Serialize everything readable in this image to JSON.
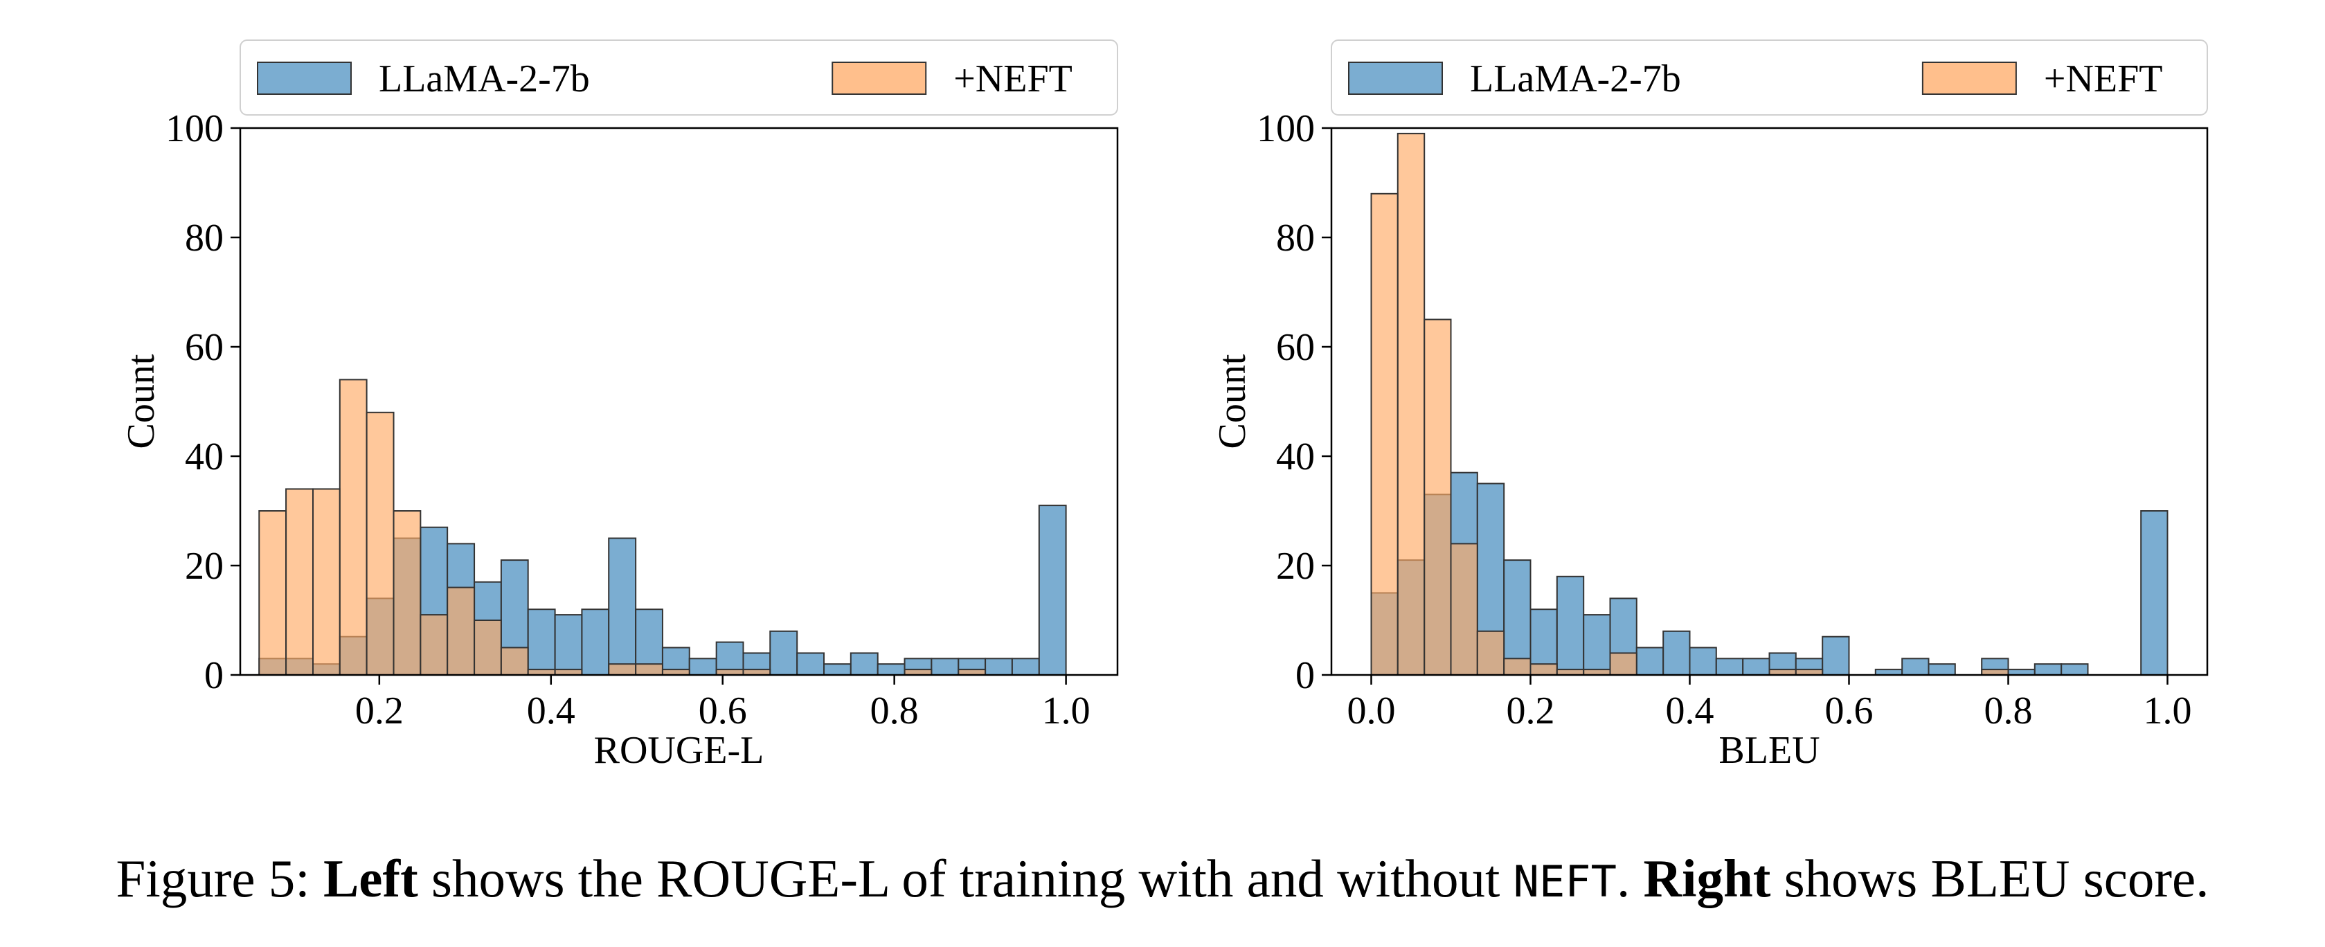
{
  "caption": {
    "prefix": "Figure 5: ",
    "left_bold": "Left",
    "left_text": " shows the ROUGE-L of training with and without ",
    "mono": "NEFT",
    "mid": ". ",
    "right_bold": "Right",
    "right_text": " shows BLEU score."
  },
  "colors": {
    "base": "#1f77b4",
    "neft": "#ff7f0e",
    "base_face": "#74a9cf",
    "neft_face": "#ffaa66"
  },
  "chart_data": [
    {
      "type": "bar",
      "subtype": "histogram",
      "xlabel": "ROUGE-L",
      "ylabel": "Count",
      "xlim": [
        0.038,
        1.06
      ],
      "ylim": [
        0,
        100
      ],
      "xticks": [
        0.2,
        0.4,
        0.6,
        0.8,
        1.0
      ],
      "xtick_labels": [
        "0.2",
        "0.4",
        "0.6",
        "0.8",
        "1.0"
      ],
      "yticks": [
        0,
        20,
        40,
        60,
        80,
        100
      ],
      "ytick_labels": [
        "0",
        "20",
        "40",
        "60",
        "80",
        "100"
      ],
      "bin_edges": [
        0.06,
        0.0913,
        0.1227,
        0.154,
        0.1853,
        0.2167,
        0.248,
        0.2793,
        0.3107,
        0.342,
        0.3733,
        0.4047,
        0.436,
        0.4673,
        0.4987,
        0.53,
        0.5613,
        0.5927,
        0.624,
        0.6553,
        0.6867,
        0.718,
        0.7493,
        0.7807,
        0.812,
        0.8433,
        0.8747,
        0.906,
        0.9373,
        0.9687,
        1.0
      ],
      "legend": {
        "position": "top",
        "columns": 2
      },
      "series": [
        {
          "name": "LLaMA-2-7b",
          "values": [
            3,
            3,
            2,
            7,
            14,
            25,
            27,
            24,
            17,
            21,
            12,
            11,
            12,
            25,
            12,
            5,
            3,
            6,
            4,
            8,
            4,
            2,
            4,
            2,
            3,
            3,
            3,
            3,
            3,
            31
          ]
        },
        {
          "name": "+NEFT",
          "values": [
            30,
            34,
            34,
            54,
            48,
            30,
            11,
            16,
            10,
            5,
            1,
            1,
            0,
            2,
            2,
            1,
            0,
            1,
            1,
            0,
            0,
            0,
            0,
            0,
            1,
            0,
            1,
            0,
            0,
            0
          ]
        }
      ]
    },
    {
      "type": "bar",
      "subtype": "histogram",
      "xlabel": "BLEU",
      "ylabel": "Count",
      "xlim": [
        -0.05,
        1.05
      ],
      "ylim": [
        0,
        100
      ],
      "xticks": [
        0.0,
        0.2,
        0.4,
        0.6,
        0.8,
        1.0
      ],
      "xtick_labels": [
        "0.0",
        "0.2",
        "0.4",
        "0.6",
        "0.8",
        "1.0"
      ],
      "yticks": [
        0,
        20,
        40,
        60,
        80,
        100
      ],
      "ytick_labels": [
        "0",
        "20",
        "40",
        "60",
        "80",
        "100"
      ],
      "bin_edges": [
        0.0,
        0.0333,
        0.0667,
        0.1,
        0.1333,
        0.1667,
        0.2,
        0.2333,
        0.2667,
        0.3,
        0.3333,
        0.3667,
        0.4,
        0.4333,
        0.4667,
        0.5,
        0.5333,
        0.5667,
        0.6,
        0.6333,
        0.6667,
        0.7,
        0.7333,
        0.7667,
        0.8,
        0.8333,
        0.8667,
        0.9,
        0.9333,
        0.9667,
        1.0
      ],
      "legend": {
        "position": "top",
        "columns": 2
      },
      "series": [
        {
          "name": "LLaMA-2-7b",
          "values": [
            15,
            21,
            33,
            37,
            35,
            21,
            12,
            18,
            11,
            14,
            5,
            8,
            5,
            3,
            3,
            4,
            3,
            7,
            0,
            1,
            3,
            2,
            0,
            3,
            1,
            2,
            2,
            0,
            0,
            30
          ]
        },
        {
          "name": "+NEFT",
          "values": [
            88,
            99,
            65,
            24,
            8,
            3,
            2,
            1,
            1,
            4,
            0,
            0,
            0,
            0,
            0,
            1,
            1,
            0,
            0,
            0,
            0,
            0,
            0,
            1,
            0,
            0,
            0,
            0,
            0,
            0
          ]
        }
      ]
    }
  ]
}
